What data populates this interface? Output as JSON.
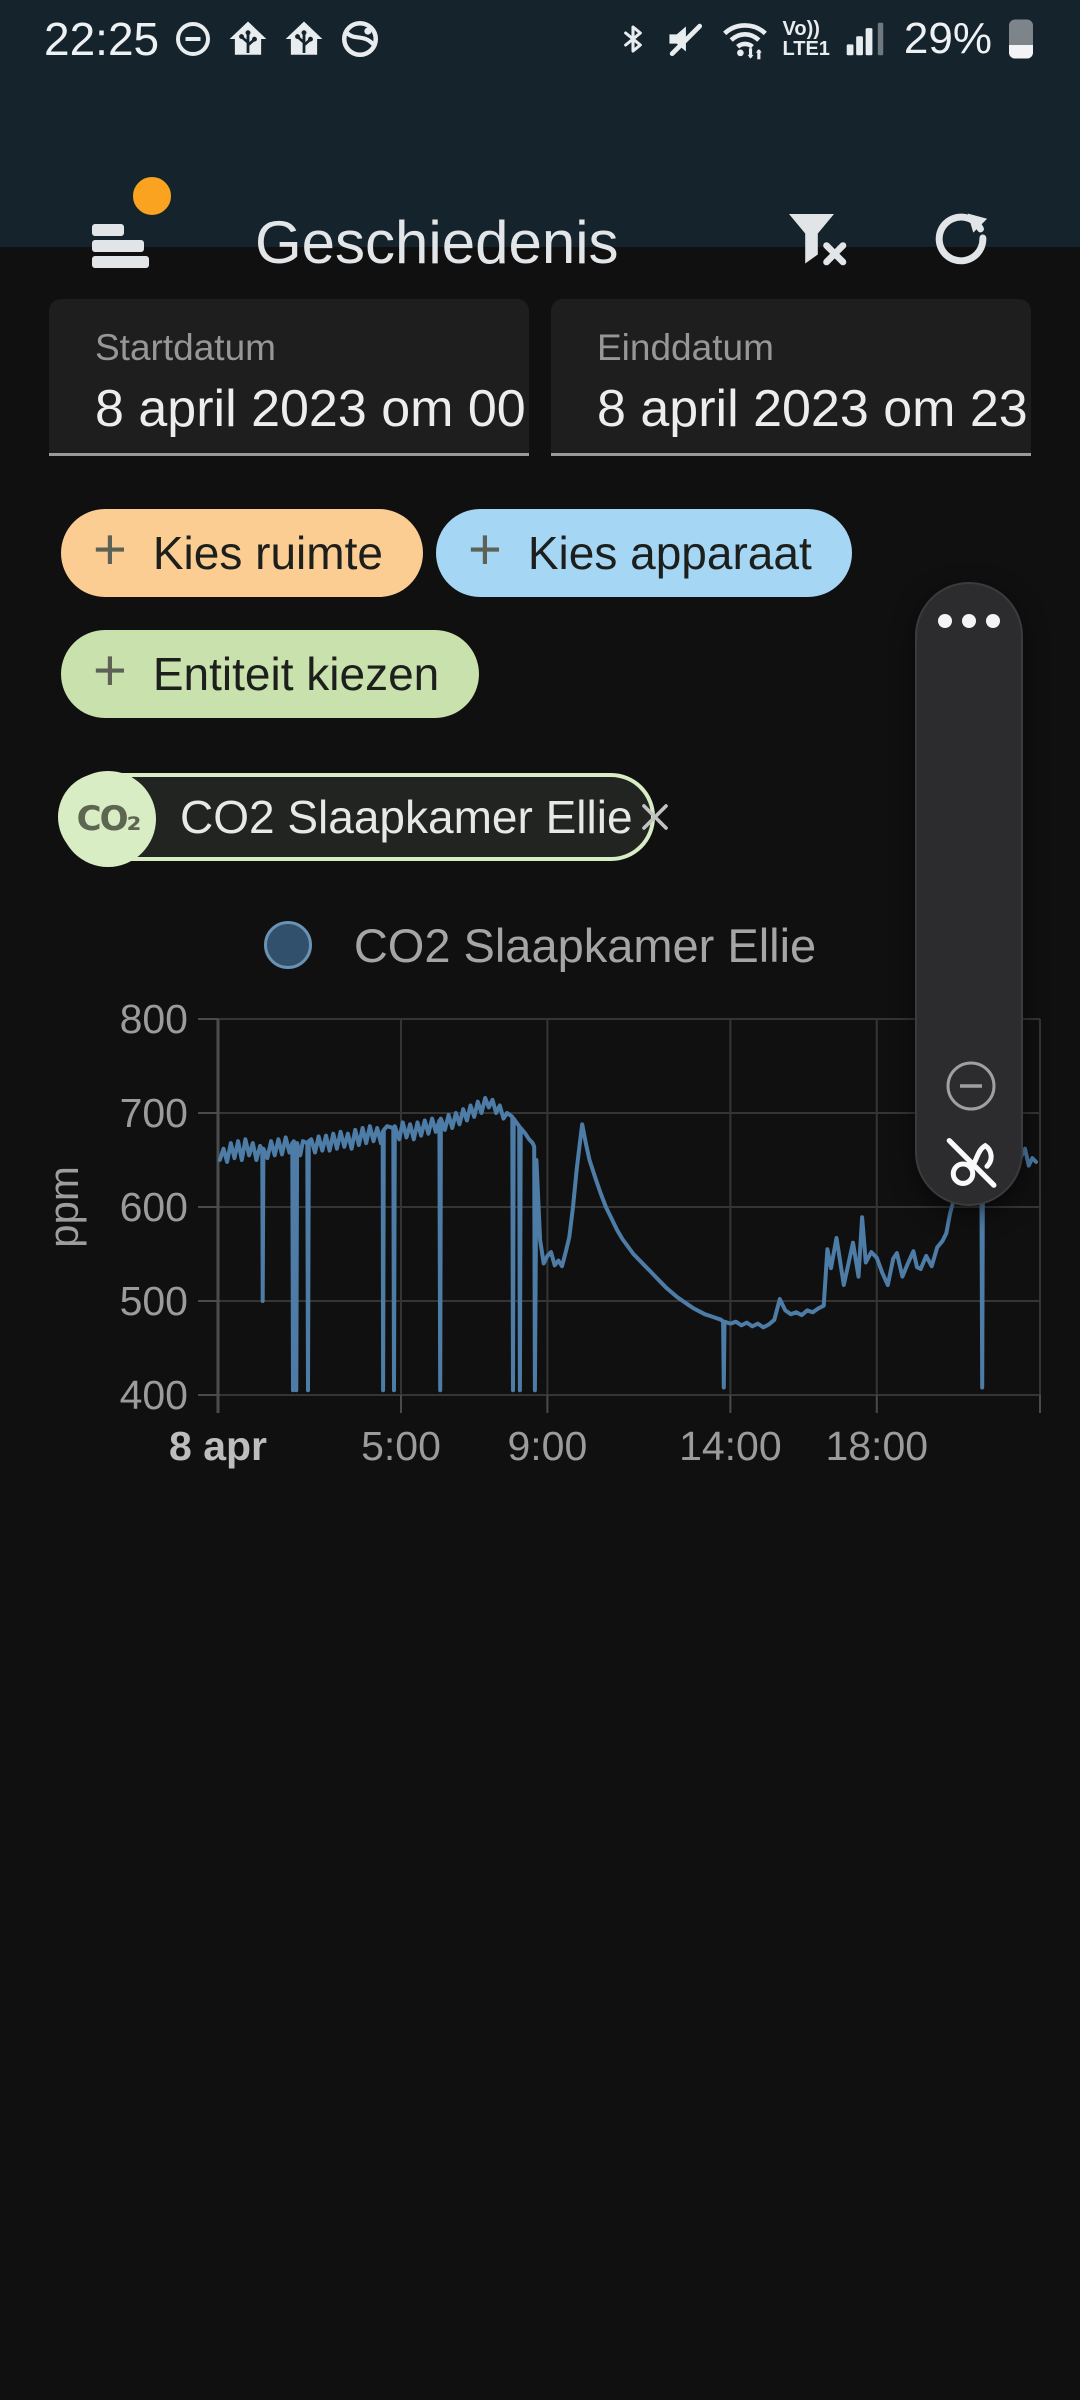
{
  "status_bar": {
    "time": "22:25",
    "battery_percent": "29%",
    "volte_top": "Vo))",
    "volte_bottom": "LTE1",
    "left_icons": [
      "dnd-icon",
      "home-assistant-icon",
      "home-assistant-icon",
      "browser-icon"
    ],
    "right_icons": [
      "bluetooth-icon",
      "volume-mute-icon",
      "wifi-icon",
      "volte-label",
      "signal-strength-icon",
      "battery-icon"
    ]
  },
  "header": {
    "title": "Geschiedenis",
    "actions": [
      "filter-clear",
      "refresh"
    ],
    "badge_color": "#f9a321"
  },
  "filters": {
    "start": {
      "label": "Startdatum",
      "value": "8 april 2023 om 00"
    },
    "end": {
      "label": "Einddatum",
      "value": "8 april 2023 om 23"
    }
  },
  "chips": [
    {
      "label": "Kies ruimte",
      "background": "#fbcd92"
    },
    {
      "label": "Kies apparaat",
      "background": "#a5d7f5"
    },
    {
      "label": "Entiteit kiezen",
      "background": "#c9e1ac"
    }
  ],
  "entity_chip": {
    "icon_label": "CO₂",
    "label": "CO2 Slaapkamer Ellie",
    "accent": "#d9edc4"
  },
  "legend": {
    "label": "CO2 Slaapkamer Ellie",
    "dot_fill": "#31506c",
    "dot_stroke": "#6a92b2"
  },
  "floating_menu": {
    "items": [
      "more-handle",
      "zoom-out",
      "pen-off"
    ]
  },
  "chart_data": {
    "type": "line",
    "title": "",
    "xlabel": "",
    "ylabel": "ppm",
    "ylim": [
      400,
      800
    ],
    "y_ticks": [
      400,
      500,
      600,
      700,
      800
    ],
    "x_unit": "hour_of_day_8_apr_2023",
    "x_range": [
      0,
      22.46
    ],
    "x_ticks": [
      {
        "t": 0,
        "label": "8 apr",
        "bold": true
      },
      {
        "t": 5,
        "label": "5:00"
      },
      {
        "t": 9,
        "label": "9:00"
      },
      {
        "t": 14,
        "label": "14:00"
      },
      {
        "t": 18,
        "label": "18:00"
      }
    ],
    "grid": true,
    "legend_position": "top",
    "series": [
      {
        "name": "CO2 Slaapkamer Ellie",
        "color": "#4d7da7",
        "points": [
          [
            0.05,
            650
          ],
          [
            0.15,
            662
          ],
          [
            0.25,
            648
          ],
          [
            0.35,
            668
          ],
          [
            0.45,
            652
          ],
          [
            0.55,
            670
          ],
          [
            0.65,
            650
          ],
          [
            0.75,
            672
          ],
          [
            0.85,
            655
          ],
          [
            0.95,
            668
          ],
          [
            1.05,
            650
          ],
          [
            1.15,
            665
          ],
          [
            1.21,
            660
          ],
          [
            1.22,
            500
          ],
          [
            1.24,
            662
          ],
          [
            1.35,
            652
          ],
          [
            1.45,
            670
          ],
          [
            1.55,
            655
          ],
          [
            1.65,
            672
          ],
          [
            1.75,
            656
          ],
          [
            1.85,
            674
          ],
          [
            1.95,
            658
          ],
          [
            2.03,
            668
          ],
          [
            2.05,
            405
          ],
          [
            2.07,
            670
          ],
          [
            2.13,
            666
          ],
          [
            2.14,
            405
          ],
          [
            2.16,
            668
          ],
          [
            2.25,
            655
          ],
          [
            2.32,
            670
          ],
          [
            2.44,
            668
          ],
          [
            2.46,
            405
          ],
          [
            2.48,
            670
          ],
          [
            2.55,
            672
          ],
          [
            2.65,
            658
          ],
          [
            2.75,
            675
          ],
          [
            2.85,
            660
          ],
          [
            2.95,
            676
          ],
          [
            3.05,
            660
          ],
          [
            3.15,
            678
          ],
          [
            3.25,
            662
          ],
          [
            3.35,
            680
          ],
          [
            3.45,
            664
          ],
          [
            3.55,
            678
          ],
          [
            3.65,
            662
          ],
          [
            3.75,
            682
          ],
          [
            3.85,
            666
          ],
          [
            3.95,
            684
          ],
          [
            4.05,
            668
          ],
          [
            4.15,
            686
          ],
          [
            4.25,
            670
          ],
          [
            4.35,
            684
          ],
          [
            4.45,
            668
          ],
          [
            4.5,
            680
          ],
          [
            4.51,
            405
          ],
          [
            4.53,
            682
          ],
          [
            4.62,
            686
          ],
          [
            4.79,
            684
          ],
          [
            4.81,
            405
          ],
          [
            4.83,
            686
          ],
          [
            4.95,
            672
          ],
          [
            5.05,
            690
          ],
          [
            5.15,
            674
          ],
          [
            5.25,
            688
          ],
          [
            5.35,
            672
          ],
          [
            5.45,
            690
          ],
          [
            5.55,
            676
          ],
          [
            5.65,
            692
          ],
          [
            5.75,
            678
          ],
          [
            5.85,
            694
          ],
          [
            5.95,
            680
          ],
          [
            6.05,
            692
          ],
          [
            6.07,
            405
          ],
          [
            6.09,
            694
          ],
          [
            6.2,
            682
          ],
          [
            6.3,
            698
          ],
          [
            6.4,
            684
          ],
          [
            6.5,
            700
          ],
          [
            6.6,
            688
          ],
          [
            6.7,
            704
          ],
          [
            6.8,
            692
          ],
          [
            6.9,
            708
          ],
          [
            7.0,
            696
          ],
          [
            7.1,
            712
          ],
          [
            7.2,
            700
          ],
          [
            7.3,
            716
          ],
          [
            7.4,
            706
          ],
          [
            7.5,
            714
          ],
          [
            7.6,
            700
          ],
          [
            7.7,
            708
          ],
          [
            7.8,
            694
          ],
          [
            7.9,
            700
          ],
          [
            8.04,
            696
          ],
          [
            8.06,
            405
          ],
          [
            8.08,
            694
          ],
          [
            8.15,
            690
          ],
          [
            8.23,
            686
          ],
          [
            8.25,
            405
          ],
          [
            8.27,
            684
          ],
          [
            8.4,
            678
          ],
          [
            8.5,
            672
          ],
          [
            8.6,
            668
          ],
          [
            8.64,
            664
          ],
          [
            8.66,
            405
          ],
          [
            8.7,
            650
          ],
          [
            8.8,
            565
          ],
          [
            8.9,
            540
          ],
          [
            9.0,
            548
          ],
          [
            9.1,
            552
          ],
          [
            9.2,
            538
          ],
          [
            9.3,
            543
          ],
          [
            9.4,
            537
          ],
          [
            9.5,
            552
          ],
          [
            9.6,
            568
          ],
          [
            9.7,
            600
          ],
          [
            9.8,
            640
          ],
          [
            9.9,
            672
          ],
          [
            9.95,
            688
          ],
          [
            10.05,
            668
          ],
          [
            10.15,
            650
          ],
          [
            10.3,
            632
          ],
          [
            10.45,
            615
          ],
          [
            10.6,
            600
          ],
          [
            10.75,
            588
          ],
          [
            10.9,
            576
          ],
          [
            11.05,
            566
          ],
          [
            11.2,
            558
          ],
          [
            11.35,
            550
          ],
          [
            11.5,
            544
          ],
          [
            11.65,
            538
          ],
          [
            11.8,
            532
          ],
          [
            11.95,
            526
          ],
          [
            12.1,
            520
          ],
          [
            12.25,
            514
          ],
          [
            12.4,
            509
          ],
          [
            12.55,
            504
          ],
          [
            12.7,
            500
          ],
          [
            12.85,
            496
          ],
          [
            13.0,
            492
          ],
          [
            13.15,
            489
          ],
          [
            13.3,
            486
          ],
          [
            13.45,
            484
          ],
          [
            13.6,
            482
          ],
          [
            13.75,
            480
          ],
          [
            13.8,
            478
          ],
          [
            13.82,
            408
          ],
          [
            13.84,
            478
          ],
          [
            14.0,
            476
          ],
          [
            14.15,
            478
          ],
          [
            14.3,
            474
          ],
          [
            14.45,
            477
          ],
          [
            14.6,
            473
          ],
          [
            14.75,
            476
          ],
          [
            14.9,
            472
          ],
          [
            15.05,
            475
          ],
          [
            15.2,
            480
          ],
          [
            15.35,
            502
          ],
          [
            15.5,
            490
          ],
          [
            15.65,
            486
          ],
          [
            15.8,
            488
          ],
          [
            15.95,
            485
          ],
          [
            16.1,
            490
          ],
          [
            16.25,
            488
          ],
          [
            16.4,
            492
          ],
          [
            16.55,
            495
          ],
          [
            16.65,
            555
          ],
          [
            16.75,
            535
          ],
          [
            16.9,
            567
          ],
          [
            17.1,
            517
          ],
          [
            17.35,
            562
          ],
          [
            17.5,
            526
          ],
          [
            17.6,
            589
          ],
          [
            17.7,
            541
          ],
          [
            17.85,
            552
          ],
          [
            18.0,
            546
          ],
          [
            18.15,
            530
          ],
          [
            18.3,
            517
          ],
          [
            18.45,
            545
          ],
          [
            18.55,
            551
          ],
          [
            18.7,
            526
          ],
          [
            18.85,
            540
          ],
          [
            19.0,
            553
          ],
          [
            19.1,
            536
          ],
          [
            19.2,
            534
          ],
          [
            19.35,
            548
          ],
          [
            19.5,
            537
          ],
          [
            19.65,
            557
          ],
          [
            19.8,
            564
          ],
          [
            19.9,
            572
          ],
          [
            20.0,
            593
          ],
          [
            20.1,
            607
          ],
          [
            20.25,
            615
          ],
          [
            20.4,
            630
          ],
          [
            20.55,
            622
          ],
          [
            20.7,
            638
          ],
          [
            20.86,
            632
          ],
          [
            20.88,
            408
          ],
          [
            20.9,
            632
          ],
          [
            21.1,
            640
          ],
          [
            21.3,
            636
          ],
          [
            21.5,
            646
          ],
          [
            21.7,
            641
          ],
          [
            21.9,
            650
          ],
          [
            22.0,
            658
          ],
          [
            22.05,
            662
          ],
          [
            22.15,
            644
          ],
          [
            22.25,
            652
          ],
          [
            22.35,
            648
          ]
        ]
      }
    ]
  }
}
